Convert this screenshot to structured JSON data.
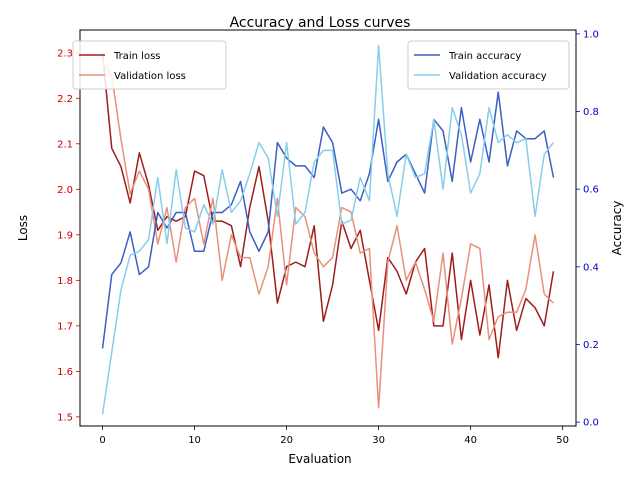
{
  "chart_data": {
    "type": "line",
    "title": "Accuracy and Loss curves",
    "xlabel": "Evaluation",
    "ylabel_left": "Loss",
    "ylabel_right": "Accuracy",
    "xlim": [
      -2.45,
      51.45
    ],
    "ylim_left": [
      1.48,
      2.35
    ],
    "ylim_right": [
      -0.01,
      1.01
    ],
    "x_ticks": [
      0,
      10,
      20,
      30,
      40,
      50
    ],
    "y_ticks_left": [
      1.5,
      1.6,
      1.7,
      1.8,
      1.9,
      2.0,
      2.1,
      2.2,
      2.3
    ],
    "y_ticks_right": [
      0.0,
      0.2,
      0.4,
      0.6,
      0.8,
      1.0
    ],
    "left_tick_color": "#cc0000",
    "right_tick_color": "#0000cc",
    "grid": false,
    "legend_left_position": "top-left",
    "legend_right_position": "top-right",
    "x": [
      0,
      1,
      2,
      3,
      4,
      5,
      6,
      7,
      8,
      9,
      10,
      11,
      12,
      13,
      14,
      15,
      16,
      17,
      18,
      19,
      20,
      21,
      22,
      23,
      24,
      25,
      26,
      27,
      28,
      29,
      30,
      31,
      32,
      33,
      34,
      35,
      36,
      37,
      38,
      39,
      40,
      41,
      42,
      43,
      44,
      45,
      46,
      47,
      48,
      49
    ],
    "series": [
      {
        "name": "Train loss",
        "axis": "left",
        "color": "#a01c1c",
        "values": [
          2.3,
          2.09,
          2.05,
          1.97,
          2.08,
          2.01,
          1.91,
          1.94,
          1.93,
          1.94,
          2.04,
          2.03,
          1.93,
          1.93,
          1.92,
          1.83,
          1.96,
          2.05,
          1.93,
          1.75,
          1.83,
          1.84,
          1.83,
          1.92,
          1.71,
          1.79,
          1.93,
          1.87,
          1.91,
          1.8,
          1.69,
          1.85,
          1.82,
          1.77,
          1.84,
          1.87,
          1.7,
          1.7,
          1.86,
          1.67,
          1.8,
          1.68,
          1.79,
          1.63,
          1.8,
          1.69,
          1.76,
          1.74,
          1.7,
          1.82
        ]
      },
      {
        "name": "Validation loss",
        "axis": "left",
        "color": "#e8917a",
        "values": [
          2.28,
          2.25,
          2.11,
          1.99,
          2.04,
          2.0,
          1.88,
          1.96,
          1.84,
          1.96,
          1.98,
          1.88,
          1.98,
          1.8,
          1.9,
          1.85,
          1.85,
          1.77,
          1.83,
          1.98,
          1.79,
          1.96,
          1.94,
          1.86,
          1.83,
          1.85,
          1.96,
          1.95,
          1.86,
          1.87,
          1.52,
          1.84,
          1.92,
          1.8,
          1.84,
          1.78,
          1.71,
          1.86,
          1.66,
          1.76,
          1.88,
          1.87,
          1.67,
          1.72,
          1.73,
          1.73,
          1.78,
          1.9,
          1.77,
          1.75
        ]
      },
      {
        "name": "Train accuracy",
        "axis": "right",
        "color": "#3b5fc4",
        "values": [
          0.19,
          0.38,
          0.41,
          0.49,
          0.38,
          0.4,
          0.54,
          0.5,
          0.54,
          0.54,
          0.44,
          0.44,
          0.54,
          0.54,
          0.56,
          0.62,
          0.49,
          0.44,
          0.49,
          0.72,
          0.68,
          0.66,
          0.66,
          0.63,
          0.76,
          0.72,
          0.59,
          0.6,
          0.57,
          0.64,
          0.78,
          0.62,
          0.67,
          0.69,
          0.64,
          0.59,
          0.78,
          0.75,
          0.62,
          0.81,
          0.67,
          0.78,
          0.67,
          0.85,
          0.66,
          0.75,
          0.73,
          0.73,
          0.75,
          0.63
        ]
      },
      {
        "name": "Validation accuracy",
        "axis": "right",
        "color": "#87ceeb",
        "values": [
          0.02,
          0.18,
          0.34,
          0.43,
          0.44,
          0.47,
          0.63,
          0.46,
          0.65,
          0.5,
          0.49,
          0.56,
          0.51,
          0.65,
          0.54,
          0.57,
          0.64,
          0.72,
          0.68,
          0.53,
          0.72,
          0.51,
          0.54,
          0.67,
          0.7,
          0.7,
          0.51,
          0.52,
          0.63,
          0.57,
          0.97,
          0.64,
          0.53,
          0.69,
          0.63,
          0.64,
          0.78,
          0.6,
          0.81,
          0.74,
          0.59,
          0.64,
          0.81,
          0.72,
          0.74,
          0.72,
          0.73,
          0.53,
          0.69,
          0.72
        ]
      }
    ]
  }
}
